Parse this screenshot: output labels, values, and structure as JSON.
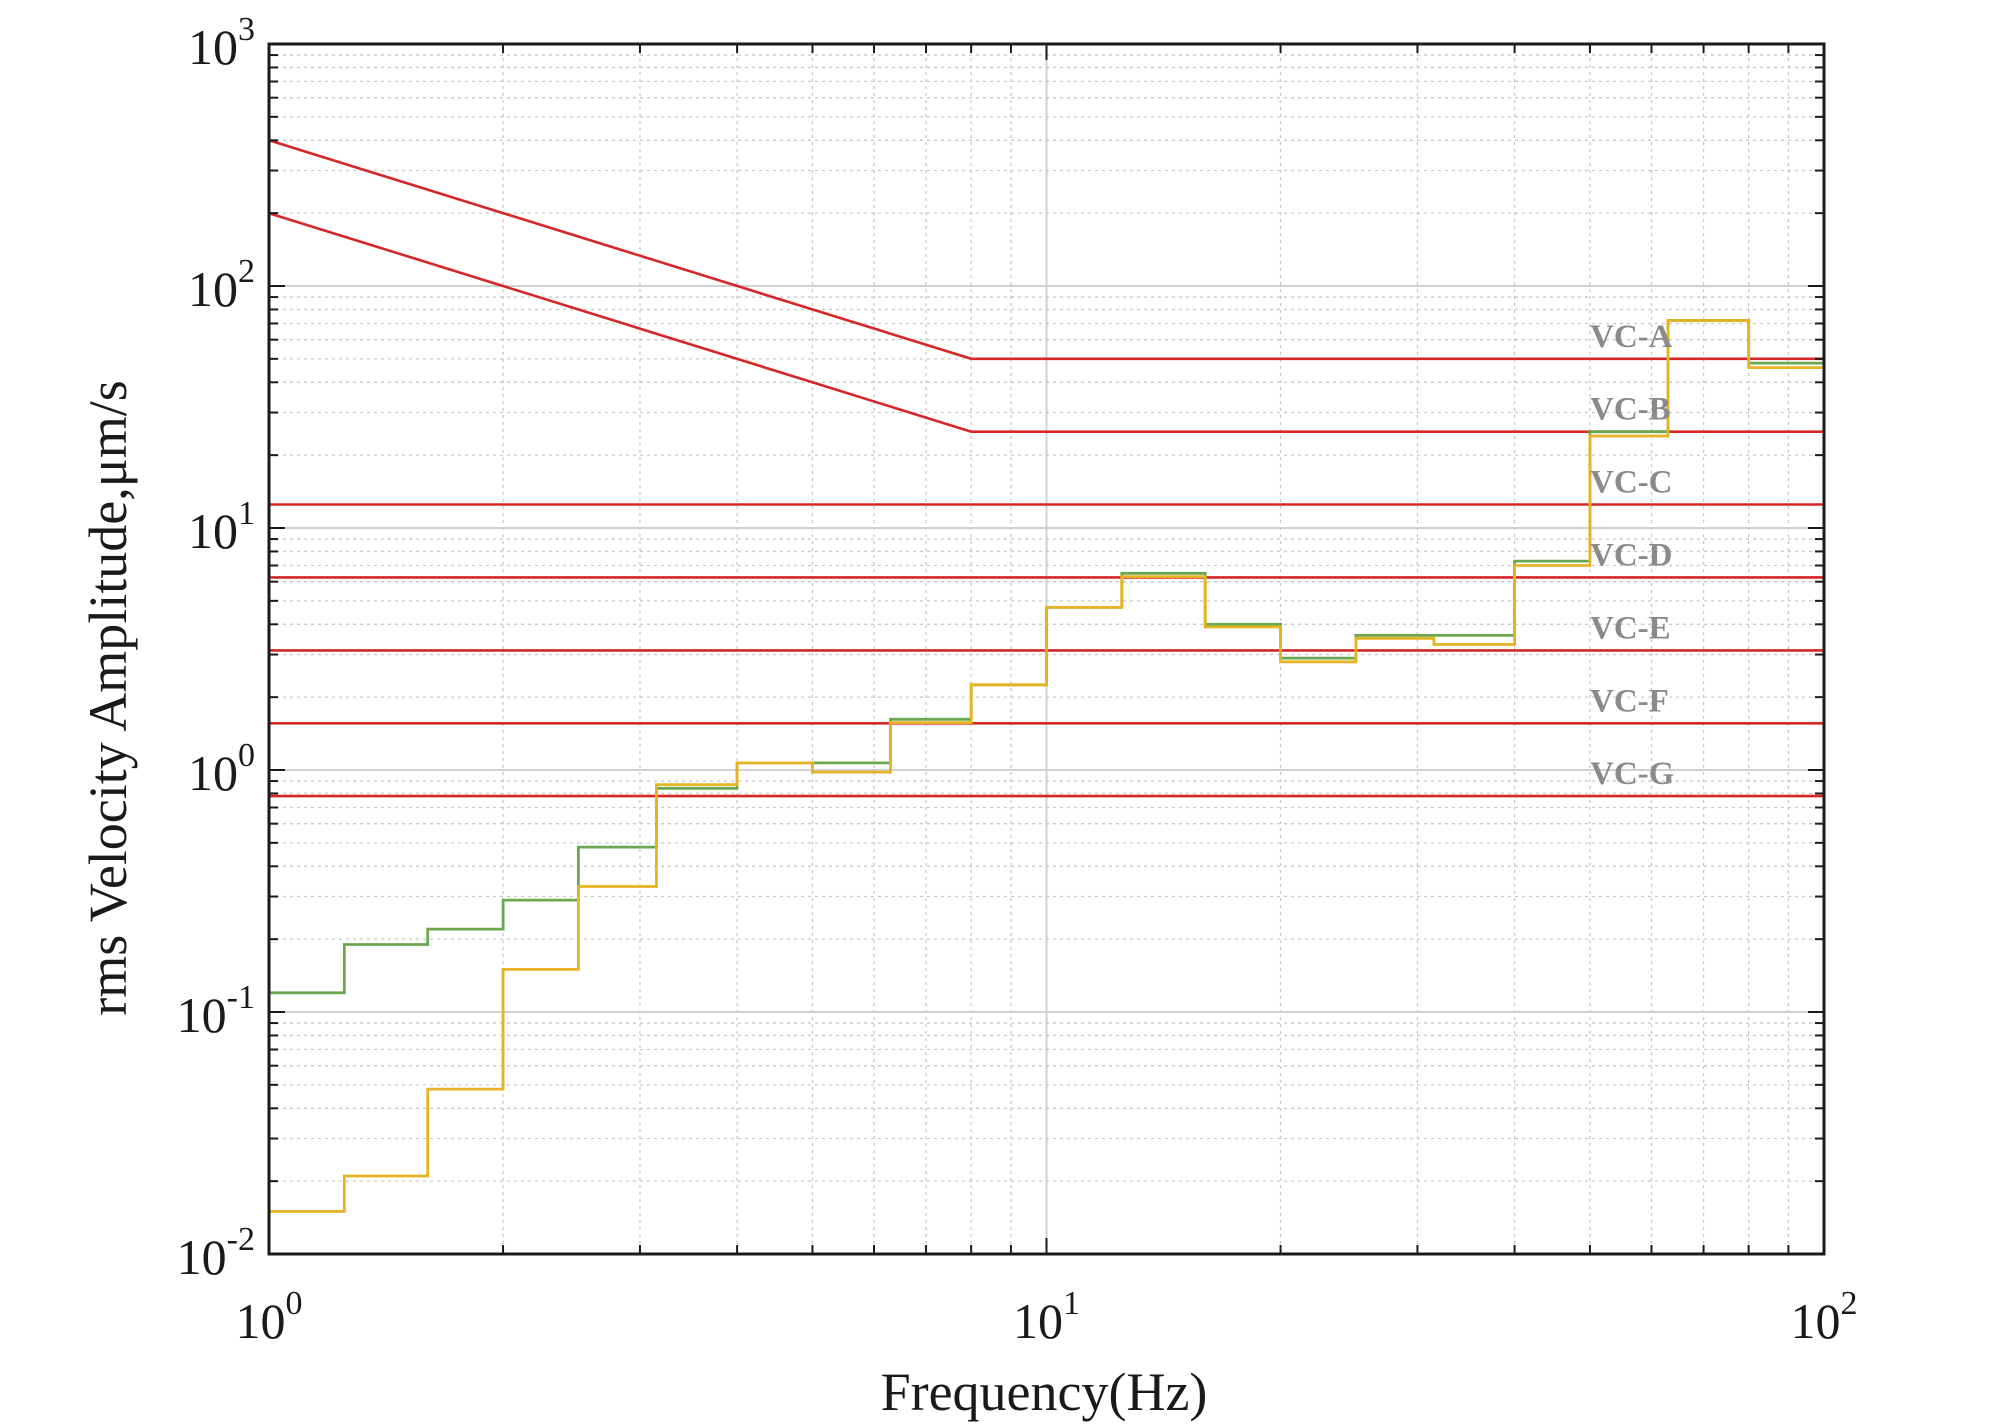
{
  "chart_data": {
    "type": "line",
    "xlabel": "Frequency(Hz)",
    "ylabel": "rms Velocity Amplitude,μm/s",
    "x_scale": "log",
    "y_scale": "log",
    "xlim": [
      1,
      100
    ],
    "ylim": [
      0.01,
      1000
    ],
    "grid": true,
    "x_ticks": [
      {
        "base": "10",
        "exp": "0",
        "value": 1
      },
      {
        "base": "10",
        "exp": "1",
        "value": 10
      },
      {
        "base": "10",
        "exp": "2",
        "value": 100
      }
    ],
    "y_ticks": [
      {
        "base": "10",
        "exp": "-2",
        "value": 0.01
      },
      {
        "base": "10",
        "exp": "-1",
        "value": 0.1
      },
      {
        "base": "10",
        "exp": "0",
        "value": 1
      },
      {
        "base": "10",
        "exp": "1",
        "value": 10
      },
      {
        "base": "10",
        "exp": "2",
        "value": 100
      },
      {
        "base": "10",
        "exp": "3",
        "value": 1000
      }
    ],
    "criteria": [
      {
        "label": "VC-A",
        "color": "#d62728",
        "points": [
          [
            1,
            400
          ],
          [
            8,
            50
          ],
          [
            100,
            50
          ]
        ]
      },
      {
        "label": "VC-B",
        "color": "#d62728",
        "points": [
          [
            1,
            200
          ],
          [
            8,
            25
          ],
          [
            100,
            25
          ]
        ]
      },
      {
        "label": "VC-C",
        "color": "#d62728",
        "points": [
          [
            1,
            12.5
          ],
          [
            100,
            12.5
          ]
        ]
      },
      {
        "label": "VC-D",
        "color": "#d62728",
        "points": [
          [
            1,
            6.25
          ],
          [
            100,
            6.25
          ]
        ]
      },
      {
        "label": "VC-E",
        "color": "#d62728",
        "points": [
          [
            1,
            3.12
          ],
          [
            100,
            3.12
          ]
        ]
      },
      {
        "label": "VC-F",
        "color": "#d62728",
        "points": [
          [
            1,
            1.56
          ],
          [
            100,
            1.56
          ]
        ]
      },
      {
        "label": "VC-G",
        "color": "#d62728",
        "points": [
          [
            1,
            0.78
          ],
          [
            100,
            0.78
          ]
        ]
      }
    ],
    "band_edges": [
      1,
      1.25,
      1.6,
      2,
      2.5,
      3.15,
      4,
      5,
      6.3,
      8,
      10,
      12.5,
      16,
      20,
      25,
      31.5,
      40,
      50,
      63,
      80,
      100
    ],
    "series": [
      {
        "color": "#6aa84f",
        "values": [
          0.12,
          0.19,
          0.22,
          0.29,
          0.48,
          0.84,
          1.07,
          1.07,
          1.62,
          2.25,
          4.7,
          6.5,
          4.0,
          2.9,
          3.6,
          3.6,
          7.3,
          25,
          72,
          48
        ]
      },
      {
        "color": "#e6b422",
        "values": [
          0.015,
          0.021,
          0.048,
          0.15,
          0.33,
          0.87,
          1.07,
          0.98,
          1.57,
          2.25,
          4.7,
          6.3,
          3.9,
          2.8,
          3.5,
          3.3,
          7.0,
          24,
          72,
          46
        ]
      }
    ]
  }
}
